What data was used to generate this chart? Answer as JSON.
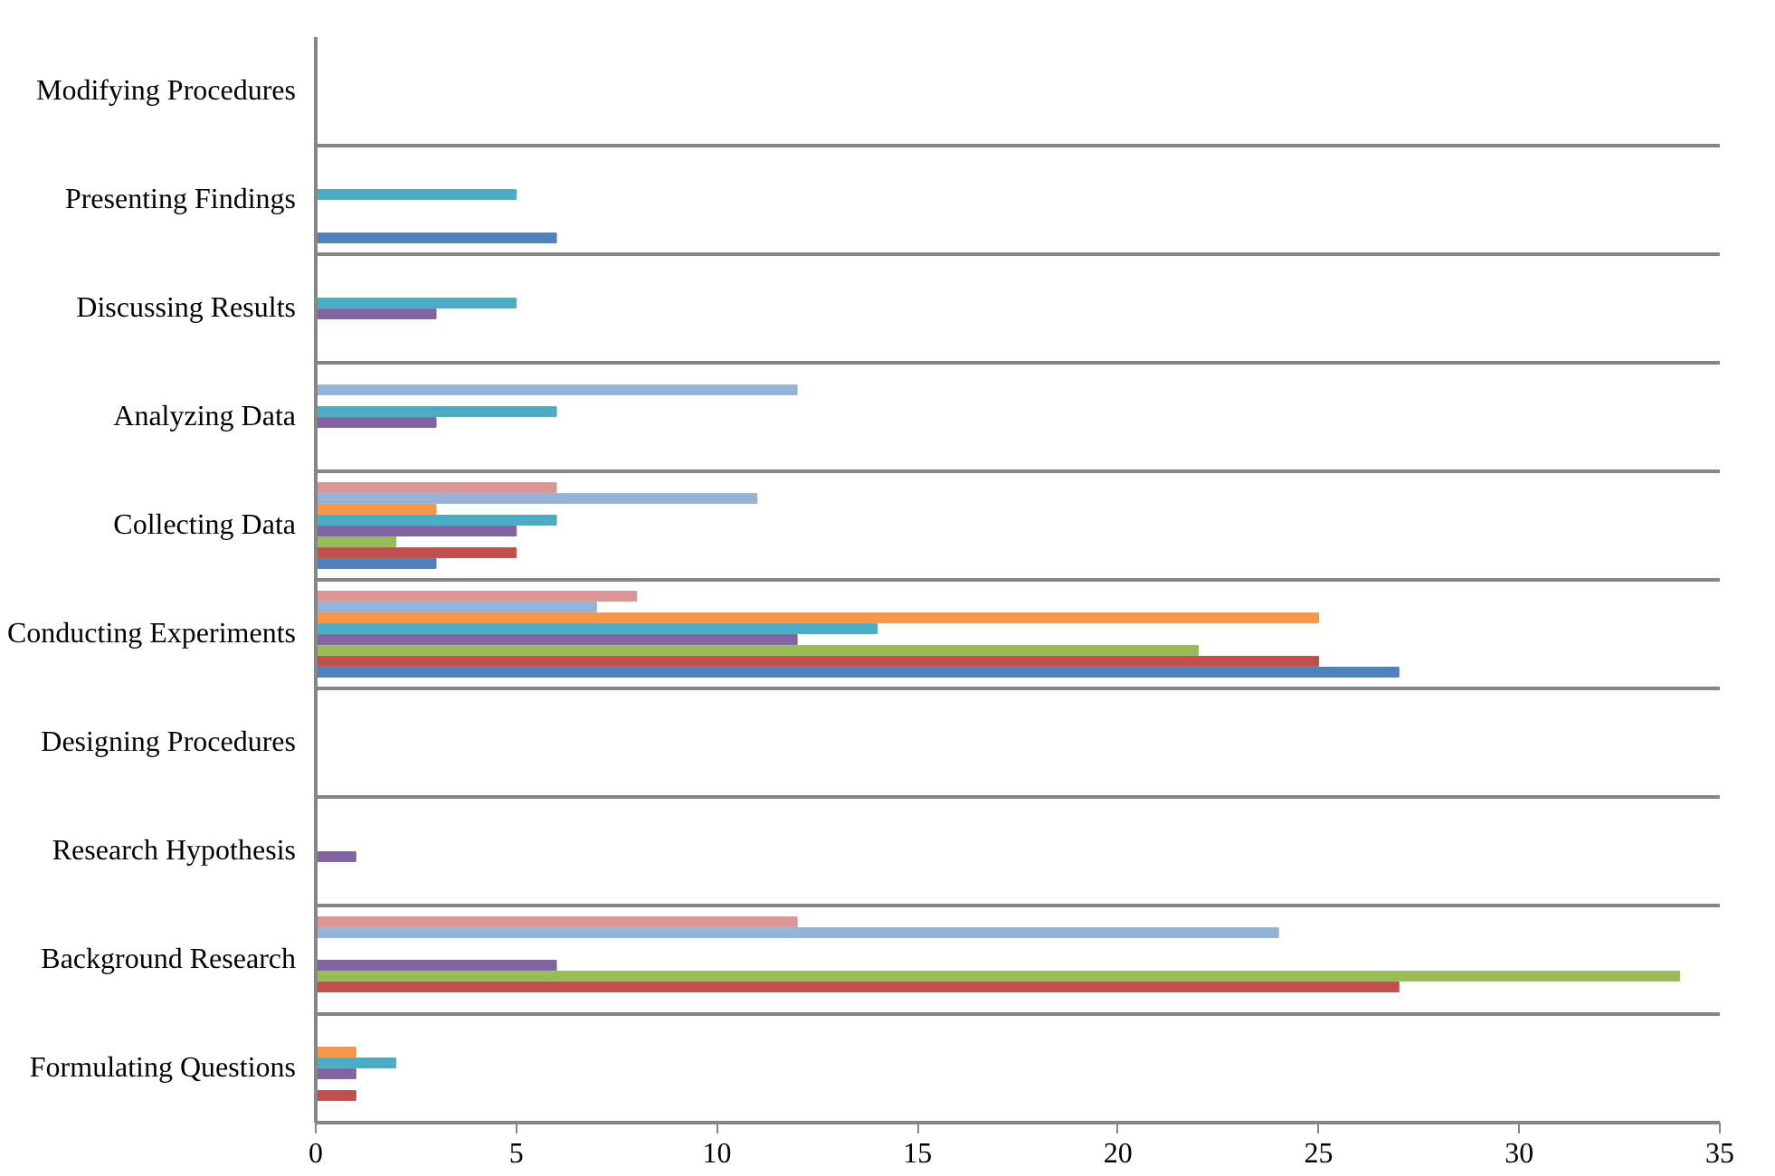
{
  "chart_data": {
    "type": "bar",
    "orientation": "horizontal",
    "categories": [
      "Modifying Procedures",
      "Presenting Findings",
      "Discussing Results",
      "Analyzing Data",
      "Collecting Data",
      "Conducting Experiments",
      "Designing Procedures",
      "Research Hypothesis",
      "Background Research",
      "Formulating Questions"
    ],
    "series": [
      {
        "color": "#4f81bd",
        "values": [
          0,
          6,
          0,
          0,
          3,
          27,
          0,
          0,
          0,
          0
        ]
      },
      {
        "color": "#c0504d",
        "values": [
          0,
          0,
          0,
          0,
          5,
          25,
          0,
          0,
          27,
          1
        ]
      },
      {
        "color": "#9bbb59",
        "values": [
          0,
          0,
          0,
          0,
          2,
          22,
          0,
          0,
          34,
          0
        ]
      },
      {
        "color": "#8064a2",
        "values": [
          0,
          0,
          3,
          3,
          5,
          12,
          0,
          1,
          6,
          1
        ]
      },
      {
        "color": "#4bacc6",
        "values": [
          0,
          5,
          5,
          6,
          6,
          14,
          0,
          0,
          0,
          2
        ]
      },
      {
        "color": "#f79646",
        "values": [
          0,
          0,
          0,
          0,
          3,
          25,
          0,
          0,
          0,
          1
        ]
      },
      {
        "color": "#95b3d7",
        "values": [
          0,
          0,
          0,
          12,
          11,
          7,
          0,
          0,
          24,
          0
        ]
      },
      {
        "color": "#d99694",
        "values": [
          0,
          0,
          0,
          0,
          6,
          8,
          0,
          0,
          12,
          0
        ]
      }
    ],
    "xlim": [
      0,
      35
    ],
    "xticks": [
      0,
      5,
      10,
      15,
      20,
      25,
      30,
      35
    ],
    "grid": "y"
  }
}
